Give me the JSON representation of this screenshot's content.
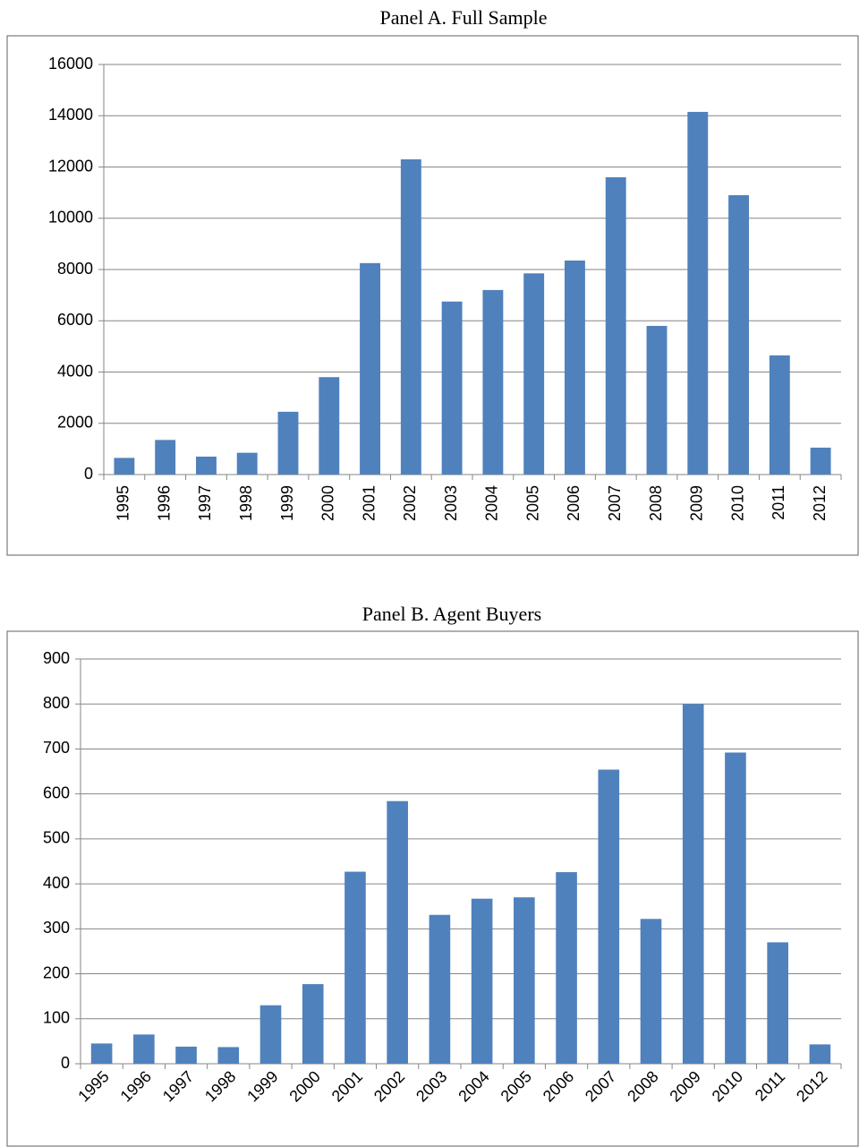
{
  "chart_data": [
    {
      "type": "bar",
      "title": "Panel A. Full Sample",
      "categories": [
        "1995",
        "1996",
        "1997",
        "1998",
        "1999",
        "2000",
        "2001",
        "2002",
        "2003",
        "2004",
        "2005",
        "2006",
        "2007",
        "2008",
        "2009",
        "2010",
        "2011",
        "2012"
      ],
      "values": [
        650,
        1350,
        700,
        850,
        2450,
        3800,
        8250,
        12300,
        6750,
        7200,
        7850,
        8350,
        11600,
        5800,
        14150,
        10900,
        4650,
        1050
      ],
      "color": "#4f81bd",
      "ylim": [
        0,
        16000
      ],
      "yticks": [
        0,
        2000,
        4000,
        6000,
        8000,
        10000,
        12000,
        14000,
        16000
      ],
      "grid": true
    },
    {
      "type": "bar",
      "title": "Panel B. Agent Buyers",
      "categories": [
        "1995",
        "1996",
        "1997",
        "1998",
        "1999",
        "2000",
        "2001",
        "2002",
        "2003",
        "2004",
        "2005",
        "2006",
        "2007",
        "2008",
        "2009",
        "2010",
        "2011",
        "2012"
      ],
      "values": [
        45,
        65,
        38,
        37,
        130,
        177,
        427,
        584,
        331,
        367,
        370,
        426,
        654,
        322,
        800,
        692,
        270,
        43
      ],
      "color": "#4f81bd",
      "ylim": [
        0,
        900
      ],
      "yticks": [
        0,
        100,
        200,
        300,
        400,
        500,
        600,
        700,
        800,
        900
      ],
      "grid": true
    }
  ]
}
